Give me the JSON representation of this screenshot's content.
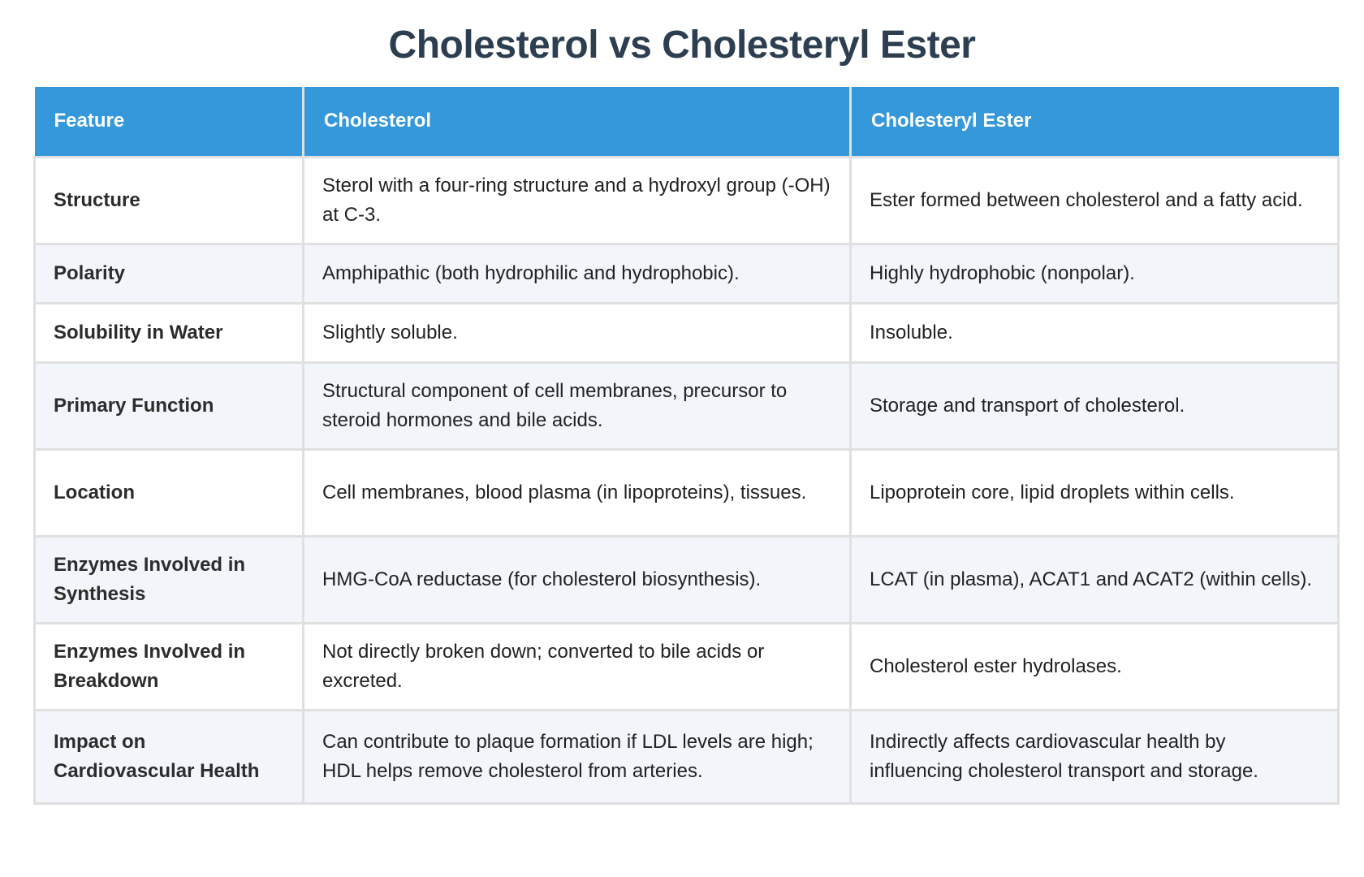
{
  "title": "Cholesterol vs Cholesteryl Ester",
  "colors": {
    "title": "#2c3e50",
    "header_bg": "#3498db",
    "header_text": "#ffffff",
    "row_alt_bg": "#f2f5f9",
    "border": "#e0e0e0"
  },
  "table": {
    "headers": [
      "Feature",
      "Cholesterol",
      "Cholesteryl Ester"
    ],
    "rows": [
      {
        "feature": "Structure",
        "cholesterol": "Sterol with a four-ring structure and a hydroxyl group (-OH) at C-3.",
        "ester": "Ester formed between cholesterol and a fatty acid."
      },
      {
        "feature": "Polarity",
        "cholesterol": "Amphipathic (both hydrophilic and hydrophobic).",
        "ester": "Highly hydrophobic (nonpolar)."
      },
      {
        "feature": "Solubility in Water",
        "cholesterol": "Slightly soluble.",
        "ester": "Insoluble."
      },
      {
        "feature": "Primary Function",
        "cholesterol": "Structural component of cell membranes, precursor to steroid hormones and bile acids.",
        "ester": "Storage and transport of cholesterol."
      },
      {
        "feature": "Location",
        "cholesterol": "Cell membranes, blood plasma (in lipoproteins), tissues.",
        "ester": "Lipoprotein core, lipid droplets within cells."
      },
      {
        "feature": "Enzymes Involved in Synthesis",
        "cholesterol": "HMG-CoA reductase (for cholesterol biosynthesis).",
        "ester": "LCAT (in plasma), ACAT1 and ACAT2 (within cells)."
      },
      {
        "feature": "Enzymes Involved in Breakdown",
        "cholesterol": "Not directly broken down; converted to bile acids or excreted.",
        "ester": "Cholesterol ester hydrolases."
      },
      {
        "feature": "Impact on Cardiovascular Health",
        "cholesterol": "Can contribute to plaque formation if LDL levels are high; HDL helps remove cholesterol from arteries.",
        "ester": "Indirectly affects cardiovascular health by influencing cholesterol transport and storage."
      }
    ]
  }
}
